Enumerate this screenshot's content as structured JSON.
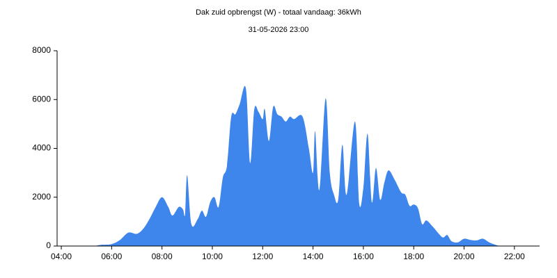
{
  "chart_data": {
    "type": "area",
    "title": "Dak zuid opbrengst (W) - totaal vandaag: 36kWh",
    "subtitle": "31-05-2026 23:00",
    "color": "#3f86ec",
    "xlim": [
      "03:50",
      "23:00"
    ],
    "xticks": [
      "04:00",
      "06:00",
      "08:00",
      "10:00",
      "12:00",
      "14:00",
      "16:00",
      "18:00",
      "20:00",
      "22:00"
    ],
    "ylim": [
      0,
      8000
    ],
    "yticks": [
      0,
      2000,
      4000,
      6000,
      8000
    ],
    "x": [
      "05:20",
      "05:35",
      "06:00",
      "06:20",
      "06:40",
      "07:00",
      "07:15",
      "07:30",
      "07:45",
      "08:00",
      "08:15",
      "08:25",
      "08:40",
      "08:50",
      "08:55",
      "09:00",
      "09:10",
      "09:25",
      "09:35",
      "09:45",
      "09:55",
      "10:05",
      "10:15",
      "10:25",
      "10:35",
      "10:45",
      "10:55",
      "11:05",
      "11:20",
      "11:30",
      "11:40",
      "11:50",
      "12:00",
      "12:05",
      "12:15",
      "12:25",
      "12:35",
      "12:45",
      "12:55",
      "13:05",
      "13:15",
      "13:35",
      "13:50",
      "14:00",
      "14:05",
      "14:15",
      "14:30",
      "14:40",
      "14:50",
      "15:00",
      "15:10",
      "15:20",
      "15:40",
      "15:50",
      "16:00",
      "16:10",
      "16:20",
      "16:30",
      "16:40",
      "16:50",
      "17:00",
      "17:15",
      "17:30",
      "17:40",
      "17:50",
      "18:00",
      "18:10",
      "18:20",
      "18:30",
      "18:45",
      "19:00",
      "19:10",
      "19:20",
      "19:30",
      "19:45",
      "20:00",
      "20:15",
      "20:30",
      "20:45",
      "21:00",
      "21:15",
      "21:25"
    ],
    "values": [
      0,
      50,
      80,
      250,
      550,
      500,
      700,
      1100,
      1600,
      2000,
      1600,
      1250,
      1600,
      1500,
      1300,
      2900,
      900,
      1100,
      1450,
      1200,
      1800,
      2000,
      1600,
      2800,
      3300,
      5300,
      5400,
      5800,
      6450,
      3400,
      5600,
      5500,
      5200,
      5600,
      4300,
      5700,
      5400,
      5300,
      5100,
      5300,
      5200,
      5300,
      4000,
      3000,
      4700,
      2300,
      6050,
      3000,
      2100,
      1900,
      4150,
      2100,
      5100,
      1750,
      2400,
      4600,
      1800,
      3200,
      1900,
      2600,
      3100,
      2700,
      2200,
      2100,
      1650,
      1700,
      1550,
      900,
      1050,
      800,
      500,
      350,
      450,
      200,
      150,
      300,
      250,
      230,
      300,
      150,
      50,
      0
    ]
  }
}
